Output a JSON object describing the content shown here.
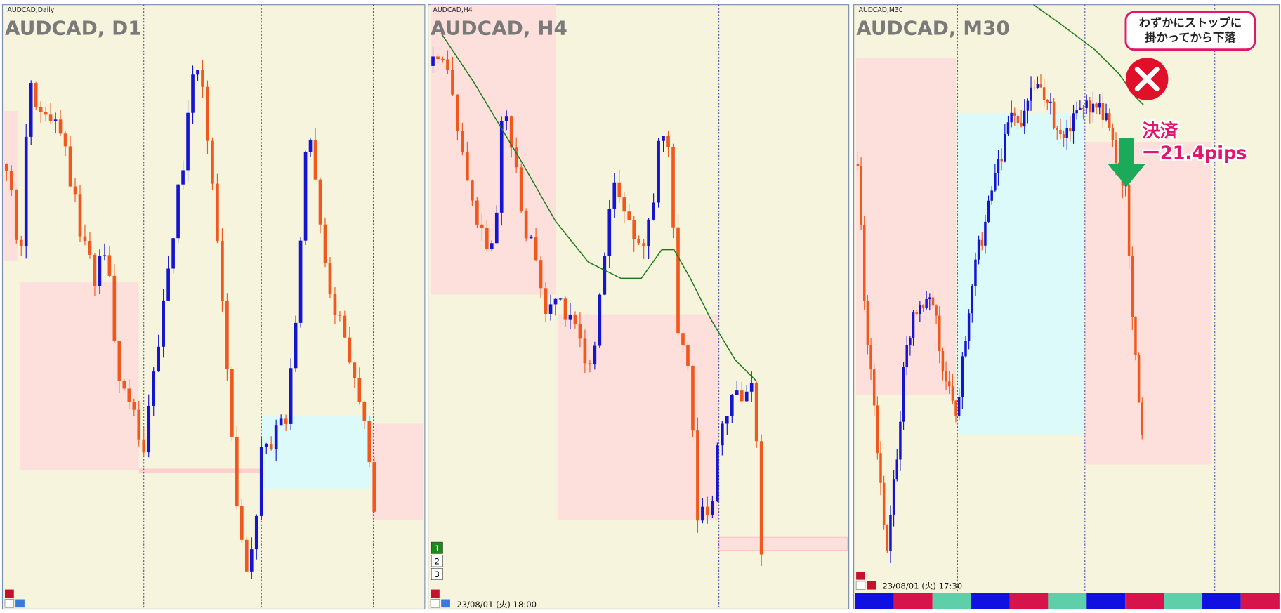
{
  "panels": [
    {
      "label": "AUDCAD,Daily",
      "title": "AUDCAD, D1"
    },
    {
      "label": "AUDCAD,H4",
      "title": "AUDCAD, H4",
      "buttons": [
        "1",
        "2",
        "3"
      ],
      "timestamp": "23/08/01 (火) 18:00"
    },
    {
      "label": "AUDCAD,M30",
      "title": "AUDCAD, M30",
      "timestamp": "23/08/01 (火) 17:30"
    }
  ],
  "annotation": {
    "callout": [
      "わずかにストップに",
      "掛かってから下落"
    ],
    "settlement": "決済",
    "pips": "ー21.4pips"
  }
}
